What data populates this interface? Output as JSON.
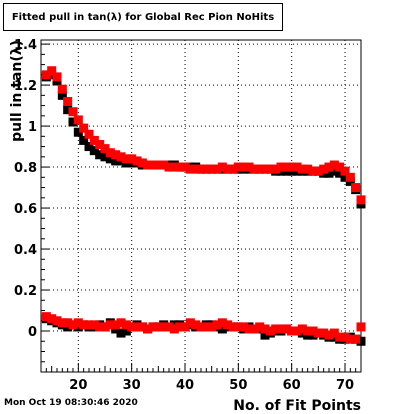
{
  "chart_data": {
    "type": "scatter",
    "title": "Fitted pull in tan(λ) for Global Rec Pion NoHits",
    "xlabel": "No. of Fit Points",
    "ylabel": "pull in tan(λ)",
    "xlim": [
      13,
      73
    ],
    "ylim": [
      -0.2,
      1.42
    ],
    "xticks": [
      20,
      30,
      40,
      50,
      60,
      70
    ],
    "yticks": [
      0,
      0.2,
      0.4,
      0.6,
      0.8,
      1,
      1.2,
      1.4
    ],
    "ytick_labels": [
      "0",
      "0.2",
      "0.4",
      "0.6",
      "0.8",
      "1",
      "1.2",
      "1.4"
    ],
    "grid": true,
    "series": [
      {
        "color": "#000000",
        "x": [
          14,
          15,
          16,
          17,
          18,
          19,
          20,
          21,
          22,
          23,
          24,
          25,
          26,
          27,
          28,
          29,
          30,
          31,
          32,
          33,
          34,
          35,
          36,
          37,
          38,
          39,
          40,
          41,
          42,
          43,
          44,
          45,
          46,
          47,
          48,
          49,
          50,
          51,
          52,
          53,
          54,
          55,
          56,
          57,
          58,
          59,
          60,
          61,
          62,
          63,
          64,
          65,
          66,
          67,
          68,
          69,
          70,
          71,
          72,
          73
        ],
        "y": [
          1.24,
          1.25,
          1.22,
          1.15,
          1.08,
          1.02,
          0.97,
          0.93,
          0.9,
          0.88,
          0.86,
          0.85,
          0.84,
          0.83,
          0.83,
          0.82,
          0.82,
          0.82,
          0.81,
          0.81,
          0.81,
          0.81,
          0.81,
          0.81,
          0.81,
          0.8,
          0.8,
          0.8,
          0.8,
          0.79,
          0.79,
          0.79,
          0.79,
          0.79,
          0.79,
          0.79,
          0.79,
          0.79,
          0.79,
          0.79,
          0.79,
          0.79,
          0.79,
          0.78,
          0.78,
          0.78,
          0.78,
          0.78,
          0.78,
          0.78,
          0.78,
          0.78,
          0.77,
          0.77,
          0.78,
          0.77,
          0.75,
          0.73,
          0.69,
          0.62
        ]
      },
      {
        "color": "#ff0000",
        "x": [
          14,
          15,
          16,
          17,
          18,
          19,
          20,
          21,
          22,
          23,
          24,
          25,
          26,
          27,
          28,
          29,
          30,
          31,
          32,
          33,
          34,
          35,
          36,
          37,
          38,
          39,
          40,
          41,
          42,
          43,
          44,
          45,
          46,
          47,
          48,
          49,
          50,
          51,
          52,
          53,
          54,
          55,
          56,
          57,
          58,
          59,
          60,
          61,
          62,
          63,
          64,
          65,
          66,
          67,
          68,
          69,
          70,
          71,
          72,
          73
        ],
        "y": [
          1.25,
          1.27,
          1.24,
          1.18,
          1.12,
          1.07,
          1.03,
          0.99,
          0.96,
          0.93,
          0.91,
          0.89,
          0.87,
          0.86,
          0.85,
          0.84,
          0.84,
          0.83,
          0.82,
          0.81,
          0.81,
          0.81,
          0.81,
          0.8,
          0.8,
          0.8,
          0.8,
          0.79,
          0.79,
          0.79,
          0.79,
          0.79,
          0.79,
          0.8,
          0.79,
          0.79,
          0.8,
          0.8,
          0.8,
          0.79,
          0.79,
          0.79,
          0.79,
          0.79,
          0.8,
          0.8,
          0.8,
          0.8,
          0.79,
          0.79,
          0.78,
          0.78,
          0.79,
          0.8,
          0.81,
          0.8,
          0.78,
          0.75,
          0.7,
          0.64
        ]
      },
      {
        "color": "#000000",
        "x": [
          14,
          15,
          16,
          17,
          18,
          19,
          20,
          21,
          22,
          23,
          24,
          25,
          26,
          27,
          28,
          29,
          30,
          31,
          32,
          33,
          34,
          35,
          36,
          37,
          38,
          39,
          40,
          41,
          42,
          43,
          44,
          45,
          46,
          47,
          48,
          49,
          50,
          51,
          52,
          53,
          54,
          55,
          56,
          57,
          58,
          59,
          60,
          61,
          62,
          63,
          64,
          65,
          66,
          67,
          68,
          69,
          70,
          71,
          72,
          73
        ],
        "y": [
          0.06,
          0.05,
          0.04,
          0.03,
          0.02,
          0.03,
          0.02,
          0.03,
          0.02,
          0.02,
          0.03,
          0.02,
          0.04,
          0.01,
          -0.01,
          0.0,
          0.02,
          0.03,
          0.02,
          0.01,
          0.02,
          0.02,
          0.03,
          0.02,
          0.03,
          0.03,
          0.02,
          0.03,
          0.02,
          0.02,
          0.03,
          0.03,
          0.02,
          0.01,
          0.02,
          0.02,
          0.02,
          0.01,
          0.02,
          0.01,
          0.01,
          -0.02,
          -0.01,
          0.0,
          0.0,
          0.01,
          0.0,
          0.0,
          -0.01,
          -0.02,
          -0.02,
          -0.01,
          -0.02,
          -0.03,
          -0.03,
          -0.04,
          -0.04,
          -0.03,
          -0.04,
          -0.05
        ]
      },
      {
        "color": "#ff0000",
        "x": [
          14,
          15,
          16,
          17,
          18,
          19,
          20,
          21,
          22,
          23,
          24,
          25,
          26,
          27,
          28,
          29,
          30,
          31,
          32,
          33,
          34,
          35,
          36,
          37,
          38,
          39,
          40,
          41,
          42,
          43,
          44,
          45,
          46,
          47,
          48,
          49,
          50,
          51,
          52,
          53,
          54,
          55,
          56,
          57,
          58,
          59,
          60,
          61,
          62,
          63,
          64,
          65,
          66,
          67,
          68,
          69,
          70,
          71,
          72,
          73
        ],
        "y": [
          0.07,
          0.06,
          0.05,
          0.04,
          0.04,
          0.03,
          0.04,
          0.03,
          0.03,
          0.03,
          0.02,
          0.02,
          0.03,
          0.03,
          0.04,
          0.03,
          0.02,
          0.02,
          0.02,
          0.01,
          0.02,
          0.02,
          0.02,
          0.02,
          0.01,
          0.02,
          0.02,
          0.04,
          0.03,
          0.02,
          0.02,
          0.02,
          0.03,
          0.04,
          0.03,
          0.02,
          0.02,
          0.02,
          0.01,
          0.01,
          0.02,
          0.01,
          0.0,
          0.01,
          0.01,
          0.01,
          0.0,
          0.0,
          0.01,
          0.0,
          0.0,
          -0.01,
          -0.01,
          -0.02,
          -0.01,
          -0.03,
          -0.03,
          -0.04,
          -0.04,
          0.02
        ]
      }
    ]
  },
  "footer": {
    "timestamp": "Mon Oct 19 08:30:46 2020"
  }
}
